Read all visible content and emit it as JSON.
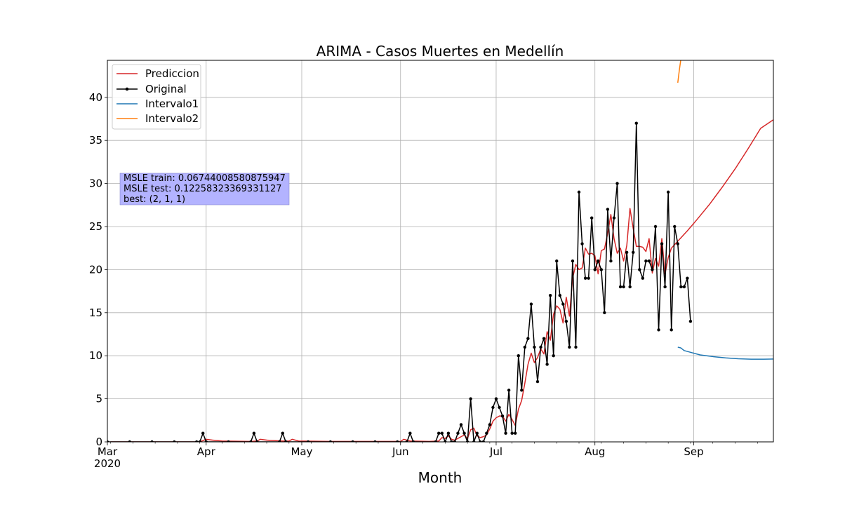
{
  "chart_data": {
    "type": "line",
    "title": "ARIMA - Casos Muertes en Medellín",
    "xlabel": "Month",
    "ylabel": "",
    "xlim": [
      "2020-03-01",
      "2020-09-26"
    ],
    "ylim": [
      0,
      44.3
    ],
    "grid": true,
    "legend_position": "top-left",
    "x_ticks": [
      {
        "date": "2020-03-01",
        "label": "Mar",
        "sublabel": "2020"
      },
      {
        "date": "2020-04-01",
        "label": "Apr"
      },
      {
        "date": "2020-05-01",
        "label": "May"
      },
      {
        "date": "2020-06-01",
        "label": "Jun"
      },
      {
        "date": "2020-07-01",
        "label": "Jul"
      },
      {
        "date": "2020-08-01",
        "label": "Aug"
      },
      {
        "date": "2020-09-01",
        "label": "Sep"
      }
    ],
    "y_ticks": [
      0,
      5,
      10,
      15,
      20,
      25,
      30,
      35,
      40
    ],
    "annotation": {
      "lines": [
        "MSLE train: 0.06744008580875947",
        "MSLE test: 0.12258323369331127",
        "best: (2, 1, 1)"
      ],
      "background": "#b3b3ff"
    },
    "series": [
      {
        "name": "Prediccion",
        "color": "#d62728",
        "marker": false,
        "points": [
          [
            "2020-03-02",
            0
          ],
          [
            "2020-03-15",
            0
          ],
          [
            "2020-03-30",
            0
          ],
          [
            "2020-04-01",
            0.3
          ],
          [
            "2020-04-03",
            0.2
          ],
          [
            "2020-04-06",
            0.1
          ],
          [
            "2020-04-15",
            0.05
          ],
          [
            "2020-04-17",
            0.1
          ],
          [
            "2020-04-18",
            0.3
          ],
          [
            "2020-04-20",
            0.2
          ],
          [
            "2020-04-25",
            0.1
          ],
          [
            "2020-04-27",
            0.1
          ],
          [
            "2020-04-28",
            0.3
          ],
          [
            "2020-04-30",
            0.1
          ],
          [
            "2020-05-10",
            0.05
          ],
          [
            "2020-05-31",
            0.05
          ],
          [
            "2020-06-01",
            0.05
          ],
          [
            "2020-06-02",
            0.3
          ],
          [
            "2020-06-04",
            0.1
          ],
          [
            "2020-06-10",
            0.05
          ],
          [
            "2020-06-13",
            0.1
          ],
          [
            "2020-06-14",
            0.5
          ],
          [
            "2020-06-15",
            0.4
          ],
          [
            "2020-06-16",
            0.7
          ],
          [
            "2020-06-17",
            0.3
          ],
          [
            "2020-06-18",
            0.2
          ],
          [
            "2020-06-20",
            0.6
          ],
          [
            "2020-06-21",
            0.8
          ],
          [
            "2020-06-22",
            0.4
          ],
          [
            "2020-06-23",
            1.4
          ],
          [
            "2020-06-24",
            1.6
          ],
          [
            "2020-06-25",
            0.7
          ],
          [
            "2020-06-26",
            0.5
          ],
          [
            "2020-06-27",
            0.6
          ],
          [
            "2020-06-28",
            0.8
          ],
          [
            "2020-06-29",
            1.5
          ],
          [
            "2020-06-30",
            2.4
          ],
          [
            "2020-07-01",
            2.8
          ],
          [
            "2020-07-02",
            3.0
          ],
          [
            "2020-07-03",
            3.0
          ],
          [
            "2020-07-04",
            2.4
          ],
          [
            "2020-07-05",
            3.2
          ],
          [
            "2020-07-06",
            2.6
          ],
          [
            "2020-07-07",
            1.9
          ],
          [
            "2020-07-08",
            3.8
          ],
          [
            "2020-07-09",
            4.8
          ],
          [
            "2020-07-10",
            6.8
          ],
          [
            "2020-07-11",
            9.0
          ],
          [
            "2020-07-12",
            10.3
          ],
          [
            "2020-07-13",
            9.2
          ],
          [
            "2020-07-14",
            9.8
          ],
          [
            "2020-07-15",
            10.8
          ],
          [
            "2020-07-16",
            10.2
          ],
          [
            "2020-07-17",
            12.8
          ],
          [
            "2020-07-18",
            11.8
          ],
          [
            "2020-07-19",
            14.8
          ],
          [
            "2020-07-20",
            15.8
          ],
          [
            "2020-07-21",
            15.4
          ],
          [
            "2020-07-22",
            13.8
          ],
          [
            "2020-07-23",
            16.8
          ],
          [
            "2020-07-24",
            14.6
          ],
          [
            "2020-07-25",
            19.0
          ],
          [
            "2020-07-26",
            20.6
          ],
          [
            "2020-07-27",
            20.0
          ],
          [
            "2020-07-28",
            20.2
          ],
          [
            "2020-07-29",
            22.5
          ],
          [
            "2020-07-30",
            21.8
          ],
          [
            "2020-07-31",
            21.9
          ],
          [
            "2020-08-01",
            21.6
          ],
          [
            "2020-08-02",
            19.5
          ],
          [
            "2020-08-03",
            22.2
          ],
          [
            "2020-08-04",
            22.4
          ],
          [
            "2020-08-05",
            24.2
          ],
          [
            "2020-08-06",
            26.4
          ],
          [
            "2020-08-07",
            23.6
          ],
          [
            "2020-08-08",
            21.9
          ],
          [
            "2020-08-09",
            22.5
          ],
          [
            "2020-08-10",
            21.0
          ],
          [
            "2020-08-11",
            22.8
          ],
          [
            "2020-08-12",
            27.1
          ],
          [
            "2020-08-13",
            24.8
          ],
          [
            "2020-08-14",
            22.7
          ],
          [
            "2020-08-15",
            22.7
          ],
          [
            "2020-08-16",
            22.6
          ],
          [
            "2020-08-17",
            22.1
          ],
          [
            "2020-08-18",
            23.6
          ],
          [
            "2020-08-19",
            19.6
          ],
          [
            "2020-08-20",
            21.3
          ],
          [
            "2020-08-21",
            20.4
          ],
          [
            "2020-08-22",
            23.6
          ],
          [
            "2020-08-23",
            19.5
          ],
          [
            "2020-08-24",
            21.4
          ],
          [
            "2020-08-25",
            22.5
          ],
          [
            "2020-08-27",
            23.3
          ],
          [
            "2020-08-30",
            24.5
          ],
          [
            "2020-09-02",
            25.8
          ],
          [
            "2020-09-06",
            27.6
          ],
          [
            "2020-09-10",
            29.6
          ],
          [
            "2020-09-14",
            31.7
          ],
          [
            "2020-09-18",
            34.0
          ],
          [
            "2020-09-22",
            36.4
          ],
          [
            "2020-09-26",
            37.4
          ]
        ]
      },
      {
        "name": "Original",
        "color": "#000000",
        "marker": true,
        "points": [
          [
            "2020-03-01",
            0
          ],
          [
            "2020-03-08",
            0
          ],
          [
            "2020-03-15",
            0
          ],
          [
            "2020-03-22",
            0
          ],
          [
            "2020-03-29",
            0
          ],
          [
            "2020-03-30",
            0
          ],
          [
            "2020-03-31",
            1
          ],
          [
            "2020-04-01",
            0
          ],
          [
            "2020-04-08",
            0
          ],
          [
            "2020-04-15",
            0
          ],
          [
            "2020-04-16",
            1
          ],
          [
            "2020-04-17",
            0
          ],
          [
            "2020-04-24",
            0
          ],
          [
            "2020-04-25",
            1
          ],
          [
            "2020-04-26",
            0
          ],
          [
            "2020-05-03",
            0
          ],
          [
            "2020-05-10",
            0
          ],
          [
            "2020-05-17",
            0
          ],
          [
            "2020-05-24",
            0
          ],
          [
            "2020-05-31",
            0
          ],
          [
            "2020-06-03",
            0
          ],
          [
            "2020-06-04",
            1
          ],
          [
            "2020-06-05",
            0
          ],
          [
            "2020-06-12",
            0
          ],
          [
            "2020-06-13",
            1
          ],
          [
            "2020-06-14",
            1
          ],
          [
            "2020-06-15",
            0
          ],
          [
            "2020-06-16",
            1
          ],
          [
            "2020-06-17",
            0
          ],
          [
            "2020-06-18",
            0
          ],
          [
            "2020-06-19",
            1
          ],
          [
            "2020-06-20",
            2
          ],
          [
            "2020-06-21",
            1
          ],
          [
            "2020-06-22",
            0
          ],
          [
            "2020-06-23",
            5
          ],
          [
            "2020-06-24",
            0
          ],
          [
            "2020-06-25",
            1
          ],
          [
            "2020-06-26",
            0
          ],
          [
            "2020-06-27",
            0
          ],
          [
            "2020-06-28",
            1
          ],
          [
            "2020-06-29",
            2
          ],
          [
            "2020-06-30",
            4
          ],
          [
            "2020-07-01",
            5
          ],
          [
            "2020-07-02",
            4
          ],
          [
            "2020-07-03",
            3
          ],
          [
            "2020-07-04",
            1
          ],
          [
            "2020-07-05",
            6
          ],
          [
            "2020-07-06",
            1
          ],
          [
            "2020-07-07",
            1
          ],
          [
            "2020-07-08",
            10
          ],
          [
            "2020-07-09",
            6
          ],
          [
            "2020-07-10",
            11
          ],
          [
            "2020-07-11",
            12
          ],
          [
            "2020-07-12",
            16
          ],
          [
            "2020-07-13",
            11
          ],
          [
            "2020-07-14",
            7
          ],
          [
            "2020-07-15",
            11
          ],
          [
            "2020-07-16",
            12
          ],
          [
            "2020-07-17",
            9
          ],
          [
            "2020-07-18",
            17
          ],
          [
            "2020-07-19",
            10
          ],
          [
            "2020-07-20",
            21
          ],
          [
            "2020-07-21",
            17
          ],
          [
            "2020-07-22",
            16
          ],
          [
            "2020-07-23",
            14
          ],
          [
            "2020-07-24",
            11
          ],
          [
            "2020-07-25",
            21
          ],
          [
            "2020-07-26",
            11
          ],
          [
            "2020-07-27",
            29
          ],
          [
            "2020-07-28",
            23
          ],
          [
            "2020-07-29",
            19
          ],
          [
            "2020-07-30",
            19
          ],
          [
            "2020-07-31",
            26
          ],
          [
            "2020-08-01",
            20
          ],
          [
            "2020-08-02",
            21
          ],
          [
            "2020-08-03",
            20
          ],
          [
            "2020-08-04",
            15
          ],
          [
            "2020-08-05",
            27
          ],
          [
            "2020-08-06",
            21
          ],
          [
            "2020-08-07",
            26
          ],
          [
            "2020-08-08",
            30
          ],
          [
            "2020-08-09",
            18
          ],
          [
            "2020-08-10",
            18
          ],
          [
            "2020-08-11",
            22
          ],
          [
            "2020-08-12",
            18
          ],
          [
            "2020-08-13",
            22
          ],
          [
            "2020-08-14",
            37
          ],
          [
            "2020-08-15",
            20
          ],
          [
            "2020-08-16",
            19
          ],
          [
            "2020-08-17",
            21
          ],
          [
            "2020-08-18",
            21
          ],
          [
            "2020-08-19",
            20
          ],
          [
            "2020-08-20",
            25
          ],
          [
            "2020-08-21",
            13
          ],
          [
            "2020-08-22",
            23
          ],
          [
            "2020-08-23",
            18
          ],
          [
            "2020-08-24",
            29
          ],
          [
            "2020-08-25",
            13
          ],
          [
            "2020-08-26",
            25
          ],
          [
            "2020-08-27",
            23
          ],
          [
            "2020-08-28",
            18
          ],
          [
            "2020-08-29",
            18
          ],
          [
            "2020-08-30",
            19
          ],
          [
            "2020-08-31",
            14
          ]
        ]
      },
      {
        "name": "Intervalo1",
        "color": "#1f77b4",
        "marker": false,
        "points": [
          [
            "2020-08-27",
            11.0
          ],
          [
            "2020-08-28",
            10.9
          ],
          [
            "2020-08-29",
            10.6
          ],
          [
            "2020-08-31",
            10.4
          ],
          [
            "2020-09-03",
            10.1
          ],
          [
            "2020-09-07",
            9.9
          ],
          [
            "2020-09-11",
            9.75
          ],
          [
            "2020-09-15",
            9.65
          ],
          [
            "2020-09-19",
            9.6
          ],
          [
            "2020-09-23",
            9.6
          ],
          [
            "2020-09-26",
            9.62
          ]
        ]
      },
      {
        "name": "Intervalo2",
        "color": "#ff7f0e",
        "marker": false,
        "points": [
          [
            "2020-08-27",
            41.7
          ],
          [
            "2020-08-27T12:00",
            43.2
          ],
          [
            "2020-08-28",
            44.5
          ]
        ]
      }
    ]
  }
}
